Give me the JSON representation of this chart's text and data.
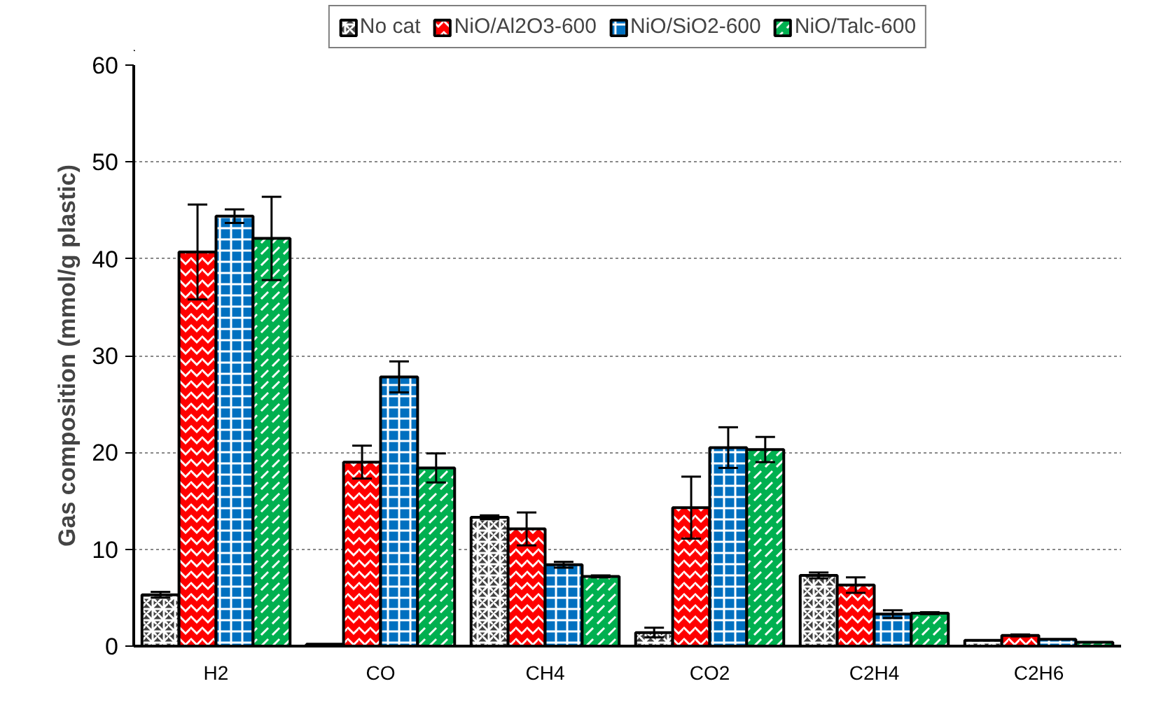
{
  "chart_data": {
    "type": "bar",
    "ylabel": "Gas composition (mmol/g plastic)",
    "categories": [
      "H2",
      "CO",
      "CH4",
      "CO2",
      "C2H4",
      "C2H6"
    ],
    "series": [
      {
        "name": "No cat",
        "color": "#404040",
        "values": [
          5.3,
          0.2,
          13.3,
          1.4,
          7.3,
          0.6
        ],
        "errors": [
          0.3,
          null,
          0.2,
          0.5,
          0.3,
          null
        ]
      },
      {
        "name": "NiO/Al2O3-600",
        "color": "#ff0000",
        "values": [
          40.7,
          19.0,
          12.1,
          14.3,
          6.3,
          1.1
        ],
        "errors": [
          4.9,
          1.7,
          1.7,
          3.2,
          0.8,
          0.1
        ]
      },
      {
        "name": "NiO/SiO2-600",
        "color": "#0070c0",
        "values": [
          44.4,
          27.8,
          8.4,
          20.5,
          3.3,
          0.7
        ],
        "errors": [
          0.7,
          1.6,
          0.3,
          2.1,
          0.4,
          null
        ]
      },
      {
        "name": "NiO/Talc-600",
        "color": "#00b050",
        "values": [
          42.1,
          18.4,
          7.2,
          20.3,
          3.4,
          0.4
        ],
        "errors": [
          4.3,
          1.5,
          0.1,
          1.3,
          0.1,
          null
        ]
      }
    ],
    "ylim": [
      0,
      60
    ],
    "yticks": [
      0,
      10,
      20,
      30,
      40,
      50,
      60
    ],
    "grid": "y",
    "legend": "top"
  }
}
